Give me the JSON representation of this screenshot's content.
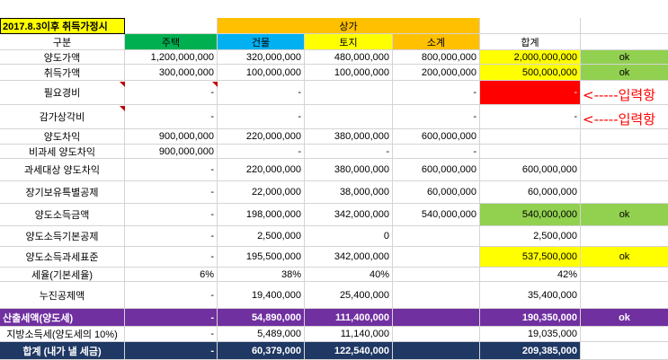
{
  "title": "2017.8.3이후 취득가정시",
  "group_header": "상가",
  "headers": [
    "구분",
    "주택",
    "건물",
    "토지",
    "소계",
    "합계"
  ],
  "rows": [
    {
      "label": "양도가액",
      "house": "1,200,000,000",
      "building": "320,000,000",
      "land": "480,000,000",
      "subtotal": "800,000,000",
      "total": "2,000,000,000",
      "check": "ok"
    },
    {
      "label": "취득가액",
      "house": "300,000,000",
      "building": "100,000,000",
      "land": "100,000,000",
      "subtotal": "200,000,000",
      "total": "500,000,000",
      "check": "ok"
    },
    {
      "label": "필요경비",
      "house": "-",
      "building": "-",
      "land": "",
      "subtotal": "-",
      "total": "-",
      "check": ""
    },
    {
      "label": "감가상각비",
      "house": "-",
      "building": "-",
      "land": "",
      "subtotal": "-",
      "total": "-",
      "check": ""
    },
    {
      "label": "양도차익",
      "house": "900,000,000",
      "building": "220,000,000",
      "land": "380,000,000",
      "subtotal": "600,000,000",
      "total": "",
      "check": ""
    },
    {
      "label": "비과세 양도차익",
      "house": "900,000,000",
      "building": "-",
      "land": "-",
      "subtotal": "-",
      "total": "",
      "check": ""
    },
    {
      "label": "과세대상 양도차익",
      "house": "-",
      "building": "220,000,000",
      "land": "380,000,000",
      "subtotal": "600,000,000",
      "total": "600,000,000",
      "check": ""
    },
    {
      "label": "장기보유특별공제",
      "house": "-",
      "building": "22,000,000",
      "land": "38,000,000",
      "subtotal": "60,000,000",
      "total": "60,000,000",
      "check": ""
    },
    {
      "label": "양도소득금액",
      "house": "-",
      "building": "198,000,000",
      "land": "342,000,000",
      "subtotal": "540,000,000",
      "total": "540,000,000",
      "check": "ok"
    },
    {
      "label": "양도소득기본공제",
      "house": "-",
      "building": "2,500,000",
      "land": "0",
      "subtotal": "",
      "total": "2,500,000",
      "check": ""
    },
    {
      "label": "양도소득과세표준",
      "house": "-",
      "building": "195,500,000",
      "land": "342,000,000",
      "subtotal": "",
      "total": "537,500,000",
      "check": "ok"
    },
    {
      "label": "세율(기본세율)",
      "house": "6%",
      "building": "38%",
      "land": "40%",
      "subtotal": "",
      "total": "42%",
      "check": ""
    },
    {
      "label": "누진공제액",
      "house": "-",
      "building": "19,400,000",
      "land": "25,400,000",
      "subtotal": "",
      "total": "35,400,000",
      "check": ""
    },
    {
      "label": "산출세액(양도세)",
      "house": "-",
      "building": "54,890,000",
      "land": "111,400,000",
      "subtotal": "",
      "total": "190,350,000",
      "check": "ok"
    },
    {
      "label": "지방소득세(양도세의 10%)",
      "house": "-",
      "building": "5,489,000",
      "land": "11,140,000",
      "subtotal": "",
      "total": "19,035,000",
      "check": ""
    },
    {
      "label": "합계 (내가 낼 세금)",
      "house": "-",
      "building": "60,379,000",
      "land": "122,540,000",
      "subtotal": "",
      "total": "209,385,000",
      "check": ""
    }
  ],
  "notes": [
    "<-----입력항",
    "<-----입력항"
  ]
}
